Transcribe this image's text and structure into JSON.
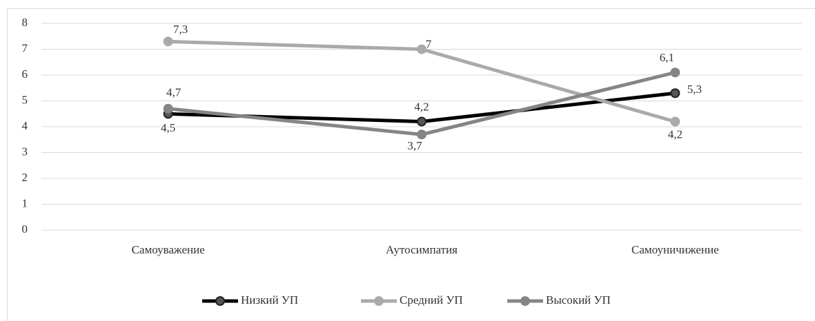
{
  "chart_data": {
    "type": "line",
    "categories": [
      "Самоуважение",
      "Аутосимпатия",
      "Самоуничижение"
    ],
    "series": [
      {
        "name": "Низкий УП",
        "color": "#000000",
        "values": [
          4.5,
          4.2,
          5.3
        ],
        "value_labels": [
          "4,5",
          "4,2",
          "5,3"
        ]
      },
      {
        "name": "Средний УП",
        "color": "#aaaaaa",
        "values": [
          7.3,
          7,
          4.2
        ],
        "value_labels": [
          "7,3",
          "7",
          "4,2"
        ]
      },
      {
        "name": "Высокий УП",
        "color": "#858585",
        "values": [
          4.7,
          3.7,
          6.1
        ],
        "value_labels": [
          "4,7",
          "3,7",
          "6,1"
        ]
      }
    ],
    "ylim": [
      0,
      8
    ],
    "yticks": [
      0,
      1,
      2,
      3,
      4,
      5,
      6,
      7,
      8
    ],
    "grid": true,
    "legend": "bottom"
  }
}
